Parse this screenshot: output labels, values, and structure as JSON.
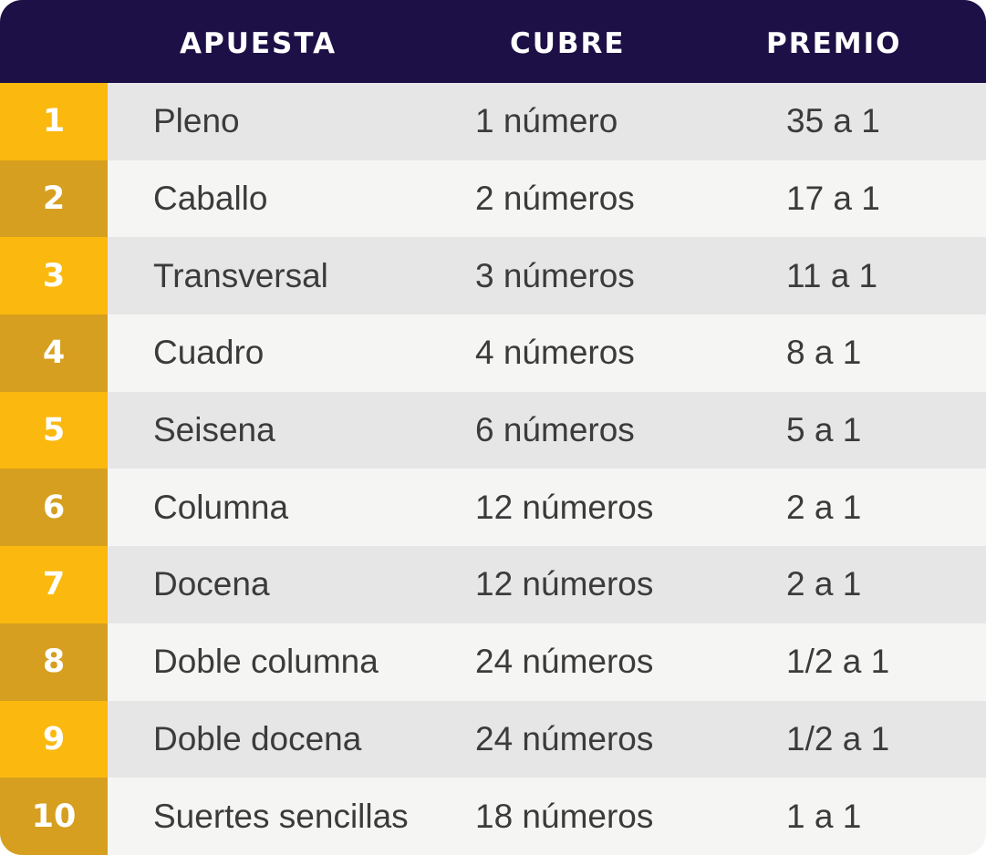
{
  "header": {
    "col_bet": "APUESTA",
    "col_covers": "CUBRE",
    "col_payout": "PREMIO"
  },
  "rows": [
    {
      "n": "1",
      "bet": "Pleno",
      "covers": "1 número",
      "payout": "35 a 1"
    },
    {
      "n": "2",
      "bet": "Caballo",
      "covers": "2 números",
      "payout": "17 a 1"
    },
    {
      "n": "3",
      "bet": "Transversal",
      "covers": "3 números",
      "payout": "11 a 1"
    },
    {
      "n": "4",
      "bet": "Cuadro",
      "covers": "4 números",
      "payout": "8 a 1"
    },
    {
      "n": "5",
      "bet": "Seisena",
      "covers": "6 números",
      "payout": "5 a 1"
    },
    {
      "n": "6",
      "bet": "Columna",
      "covers": "12 números",
      "payout": "2 a 1"
    },
    {
      "n": "7",
      "bet": "Docena",
      "covers": "12 números",
      "payout": "2 a 1"
    },
    {
      "n": "8",
      "bet": "Doble columna",
      "covers": "24 números",
      "payout": "1/2 a 1"
    },
    {
      "n": "9",
      "bet": "Doble docena",
      "covers": "24 números",
      "payout": "1/2 a 1"
    },
    {
      "n": "10",
      "bet": "Suertes sencillas",
      "covers": "18 números",
      "payout": "1 a 1"
    }
  ],
  "colors": {
    "header_bg": "#1d1046",
    "number_odd": "#fbb80e",
    "number_even": "#d69f1f",
    "row_odd": "#e6e6e6",
    "row_even": "#f5f5f4"
  }
}
